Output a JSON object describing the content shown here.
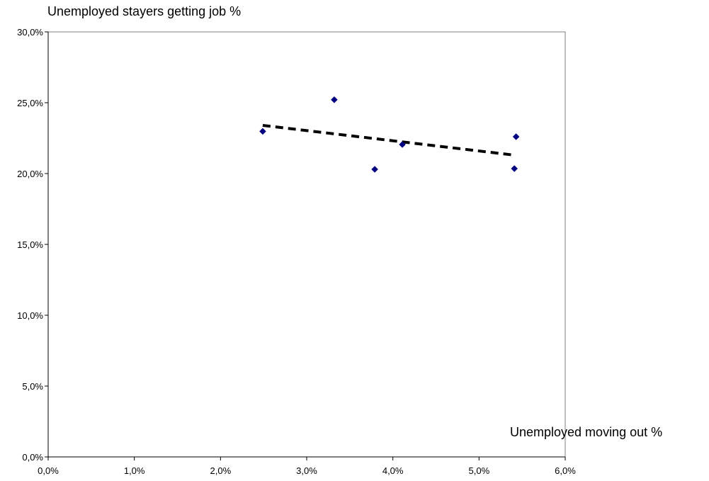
{
  "chart_data": {
    "type": "scatter",
    "title": "",
    "ylabel": "Unemployed stayers getting job %",
    "xlabel": "Unemployed moving out %",
    "xlim": [
      0.0,
      0.06
    ],
    "ylim": [
      0.0,
      0.3
    ],
    "x_ticks": [
      0.0,
      0.01,
      0.02,
      0.03,
      0.04,
      0.05,
      0.06
    ],
    "x_tick_labels": [
      "0,0%",
      "1,0%",
      "2,0%",
      "3,0%",
      "4,0%",
      "5,0%",
      "6,0%"
    ],
    "y_ticks": [
      0.0,
      0.05,
      0.1,
      0.15,
      0.2,
      0.25,
      0.3
    ],
    "y_tick_labels": [
      "0,0%",
      "5,0%",
      "10,0%",
      "15,0%",
      "20,0%",
      "25,0%",
      "30,0%"
    ],
    "grid": false,
    "legend": "none",
    "series": [
      {
        "marker": "diamond",
        "color": "#000080",
        "points": [
          {
            "x": 0.0249,
            "y": 0.2298
          },
          {
            "x": 0.0332,
            "y": 0.2521
          },
          {
            "x": 0.0379,
            "y": 0.203
          },
          {
            "x": 0.0411,
            "y": 0.2205
          },
          {
            "x": 0.0541,
            "y": 0.2035
          },
          {
            "x": 0.0543,
            "y": 0.226
          }
        ]
      }
    ],
    "trendline": {
      "type": "linear",
      "style": "dashed",
      "color": "#000000",
      "start": {
        "x": 0.0249,
        "y": 0.234
      },
      "end": {
        "x": 0.0541,
        "y": 0.213
      }
    }
  }
}
